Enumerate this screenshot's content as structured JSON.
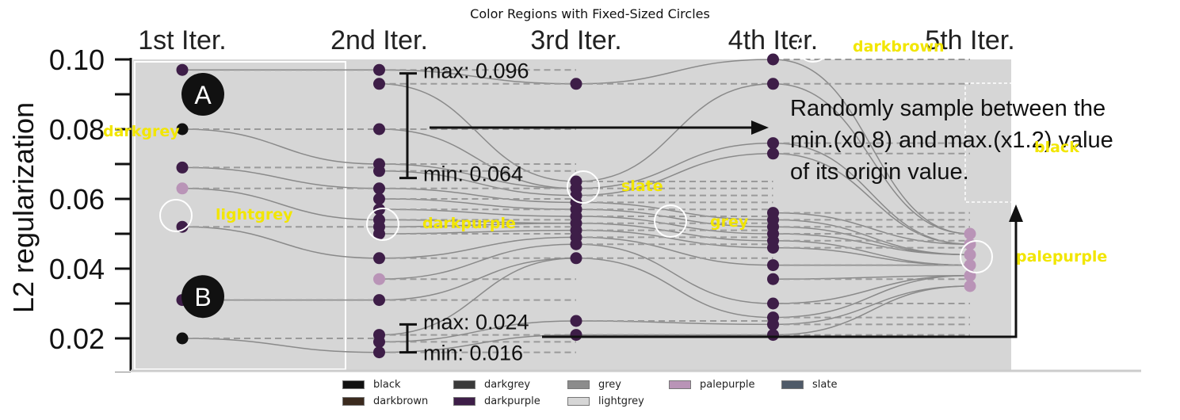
{
  "title": "Color Regions with Fixed-Sized Circles",
  "chart_data": {
    "type": "scatter",
    "title": "Color Regions with Fixed-Sized Circles",
    "ylabel": "L2 regularization",
    "ylim": [
      0.01,
      0.1
    ],
    "yticks": [
      {
        "value": 0.1,
        "label": "0.10"
      },
      {
        "value": 0.08,
        "label": "0.08"
      },
      {
        "value": 0.06,
        "label": "0.06"
      },
      {
        "value": 0.04,
        "label": "0.04"
      },
      {
        "value": 0.02,
        "label": "0.02"
      }
    ],
    "iterations": [
      "1st Iter.",
      "2nd Iter.",
      "3rd Iter.",
      "4th Iter.",
      "5th Iter."
    ],
    "points": [
      {
        "iter": 1,
        "y": 0.097,
        "c": "#3e1e48"
      },
      {
        "iter": 1,
        "y": 0.08,
        "c": "#111111"
      },
      {
        "iter": 1,
        "y": 0.069,
        "c": "#3e1e48"
      },
      {
        "iter": 1,
        "y": 0.063,
        "c": "#b994b7"
      },
      {
        "iter": 1,
        "y": 0.052,
        "c": "#3e1e48"
      },
      {
        "iter": 1,
        "y": 0.031,
        "c": "#3e1e48"
      },
      {
        "iter": 1,
        "y": 0.02,
        "c": "#111111"
      },
      {
        "iter": 2,
        "y": 0.097,
        "c": "#3e1e48"
      },
      {
        "iter": 2,
        "y": 0.093,
        "c": "#3e1e48"
      },
      {
        "iter": 2,
        "y": 0.08,
        "c": "#3e1e48"
      },
      {
        "iter": 2,
        "y": 0.07,
        "c": "#3e1e48"
      },
      {
        "iter": 2,
        "y": 0.068,
        "c": "#3e1e48"
      },
      {
        "iter": 2,
        "y": 0.063,
        "c": "#3e1e48"
      },
      {
        "iter": 2,
        "y": 0.06,
        "c": "#3e1e48"
      },
      {
        "iter": 2,
        "y": 0.057,
        "c": "#3e1e48"
      },
      {
        "iter": 2,
        "y": 0.054,
        "c": "#3e1e48"
      },
      {
        "iter": 2,
        "y": 0.052,
        "c": "#3e1e48"
      },
      {
        "iter": 2,
        "y": 0.05,
        "c": "#3e1e48"
      },
      {
        "iter": 2,
        "y": 0.043,
        "c": "#3e1e48"
      },
      {
        "iter": 2,
        "y": 0.037,
        "c": "#b994b7"
      },
      {
        "iter": 2,
        "y": 0.031,
        "c": "#3e1e48"
      },
      {
        "iter": 2,
        "y": 0.021,
        "c": "#3e1e48"
      },
      {
        "iter": 2,
        "y": 0.019,
        "c": "#3e1e48"
      },
      {
        "iter": 2,
        "y": 0.016,
        "c": "#3e1e48"
      },
      {
        "iter": 3,
        "y": 0.093,
        "c": "#3e1e48"
      },
      {
        "iter": 3,
        "y": 0.065,
        "c": "#3e1e48"
      },
      {
        "iter": 3,
        "y": 0.063,
        "c": "#3e1e48"
      },
      {
        "iter": 3,
        "y": 0.061,
        "c": "#3e1e48"
      },
      {
        "iter": 3,
        "y": 0.059,
        "c": "#3e1e48"
      },
      {
        "iter": 3,
        "y": 0.057,
        "c": "#3e1e48"
      },
      {
        "iter": 3,
        "y": 0.055,
        "c": "#3e1e48"
      },
      {
        "iter": 3,
        "y": 0.053,
        "c": "#3e1e48"
      },
      {
        "iter": 3,
        "y": 0.051,
        "c": "#3e1e48"
      },
      {
        "iter": 3,
        "y": 0.049,
        "c": "#3e1e48"
      },
      {
        "iter": 3,
        "y": 0.047,
        "c": "#3e1e48"
      },
      {
        "iter": 3,
        "y": 0.043,
        "c": "#3e1e48"
      },
      {
        "iter": 3,
        "y": 0.025,
        "c": "#3e1e48"
      },
      {
        "iter": 3,
        "y": 0.021,
        "c": "#3e1e48"
      },
      {
        "iter": 4,
        "y": 0.1,
        "c": "#3e1e48"
      },
      {
        "iter": 4,
        "y": 0.093,
        "c": "#3e1e48"
      },
      {
        "iter": 4,
        "y": 0.076,
        "c": "#3e1e48"
      },
      {
        "iter": 4,
        "y": 0.073,
        "c": "#3e1e48"
      },
      {
        "iter": 4,
        "y": 0.056,
        "c": "#3e1e48"
      },
      {
        "iter": 4,
        "y": 0.054,
        "c": "#3e1e48"
      },
      {
        "iter": 4,
        "y": 0.052,
        "c": "#3e1e48"
      },
      {
        "iter": 4,
        "y": 0.05,
        "c": "#3e1e48"
      },
      {
        "iter": 4,
        "y": 0.048,
        "c": "#3e1e48"
      },
      {
        "iter": 4,
        "y": 0.046,
        "c": "#3e1e48"
      },
      {
        "iter": 4,
        "y": 0.041,
        "c": "#3e1e48"
      },
      {
        "iter": 4,
        "y": 0.037,
        "c": "#3e1e48"
      },
      {
        "iter": 4,
        "y": 0.03,
        "c": "#3e1e48"
      },
      {
        "iter": 4,
        "y": 0.026,
        "c": "#3e1e48"
      },
      {
        "iter": 4,
        "y": 0.024,
        "c": "#3e1e48"
      },
      {
        "iter": 4,
        "y": 0.021,
        "c": "#3e1e48"
      },
      {
        "iter": 5,
        "y": 0.05,
        "c": "#b994b7"
      },
      {
        "iter": 5,
        "y": 0.047,
        "c": "#b994b7"
      },
      {
        "iter": 5,
        "y": 0.044,
        "c": "#b994b7"
      },
      {
        "iter": 5,
        "y": 0.041,
        "c": "#b994b7"
      },
      {
        "iter": 5,
        "y": 0.038,
        "c": "#b994b7"
      },
      {
        "iter": 5,
        "y": 0.035,
        "c": "#b994b7"
      }
    ],
    "annotations": {
      "badge_a": "A",
      "badge_b": "B",
      "max_a": "max: 0.096",
      "min_a": "min: 0.064",
      "max_b": "max: 0.024",
      "min_b": "min: 0.016",
      "note_line1": "Randomly sample between the",
      "note_line2": "min.(x0.8) and max.(x1.2) value",
      "note_line3": "of its origin value."
    },
    "color_regions": [
      {
        "label": "darkgrey",
        "iter": 1,
        "y": 0.08
      },
      {
        "label": "lightgrey",
        "iter": 1,
        "y": 0.055
      },
      {
        "label": "darkpurple",
        "iter": 2,
        "y": 0.052
      },
      {
        "label": "slate",
        "iter": 3,
        "y": 0.063
      },
      {
        "label": "grey",
        "iter": 3.5,
        "y": 0.054
      },
      {
        "label": "darkbrown",
        "iter": 4,
        "y": 0.103
      },
      {
        "label": "black",
        "iter": 5,
        "y": 0.077
      },
      {
        "label": "palepurple",
        "iter": 5,
        "y": 0.043
      }
    ],
    "legend": {
      "placement": "bottom-center",
      "entries": [
        {
          "name": "black",
          "color": "#111111"
        },
        {
          "name": "darkbrown",
          "color": "#3b2a1e"
        },
        {
          "name": "darkgrey",
          "color": "#3a3a3a"
        },
        {
          "name": "darkpurple",
          "color": "#3e1e48"
        },
        {
          "name": "grey",
          "color": "#8c8c8c"
        },
        {
          "name": "lightgrey",
          "color": "#d6d6d6"
        },
        {
          "name": "palepurple",
          "color": "#b994b7"
        },
        {
          "name": "slate",
          "color": "#4f5a68"
        }
      ]
    },
    "label_color": "#f2e600",
    "panel_color": "#d6d6d6"
  }
}
